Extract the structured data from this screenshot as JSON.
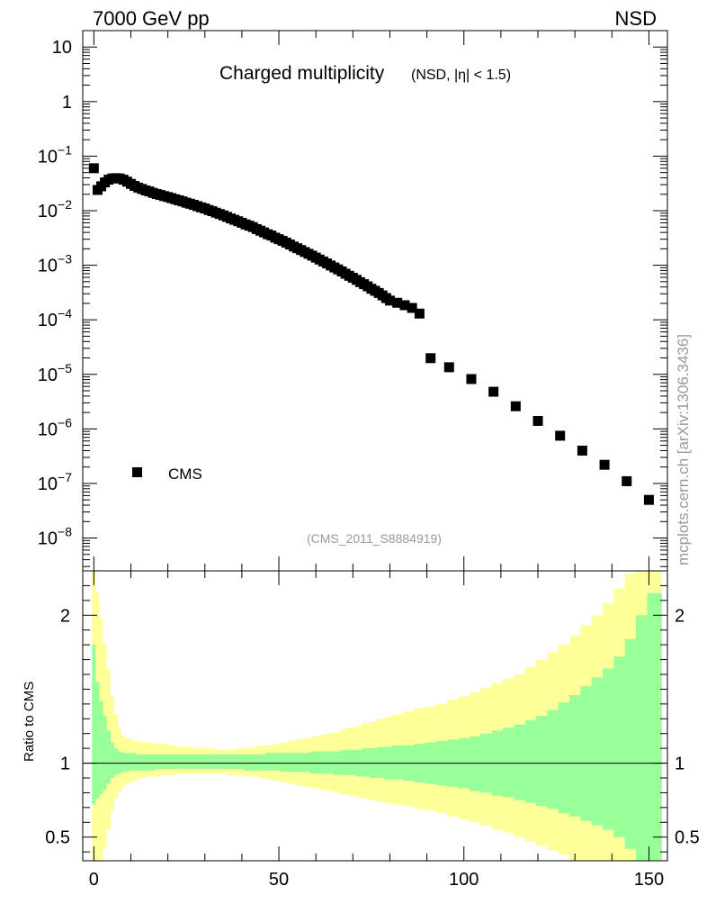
{
  "header": {
    "left": "7000 GeV pp",
    "right": "NSD"
  },
  "side_label": "mcplots.cern.ch [arXiv:1306.3436]",
  "analysis_tag": "(CMS_2011_S8884919)",
  "chart_data": [
    {
      "type": "scatter",
      "panel": "main",
      "title": "Charged multiplicity",
      "subtitle": "(NSD, |η| < 1.5)",
      "yscale": "log",
      "xlim": [
        -3,
        155
      ],
      "ylim": [
        2.5e-09,
        20
      ],
      "y_ticks": [
        {
          "value": 10,
          "mant": "10",
          "exp": ""
        },
        {
          "value": 1,
          "mant": "1",
          "exp": ""
        },
        {
          "value": 0.1,
          "mant": "10",
          "exp": "−1"
        },
        {
          "value": 0.01,
          "mant": "10",
          "exp": "−2"
        },
        {
          "value": 0.001,
          "mant": "10",
          "exp": "−3"
        },
        {
          "value": 0.0001,
          "mant": "10",
          "exp": "−4"
        },
        {
          "value": 1e-05,
          "mant": "10",
          "exp": "−5"
        },
        {
          "value": 1e-06,
          "mant": "10",
          "exp": "−6"
        },
        {
          "value": 1e-07,
          "mant": "10",
          "exp": "−7"
        },
        {
          "value": 1e-08,
          "mant": "10",
          "exp": "−8"
        }
      ],
      "legend": {
        "placement": "bottom-left",
        "entries": [
          "CMS"
        ]
      },
      "series": [
        {
          "name": "CMS",
          "marker": "square",
          "color": "#000000",
          "x": [
            0,
            1,
            2,
            3,
            4,
            5,
            6,
            7,
            8,
            9,
            10,
            11,
            12,
            13,
            14,
            15,
            16,
            17,
            18,
            19,
            20,
            21,
            22,
            23,
            24,
            25,
            26,
            27,
            28,
            29,
            30,
            31,
            32,
            33,
            34,
            35,
            36,
            37,
            38,
            39,
            40,
            41,
            42,
            43,
            44,
            45,
            46,
            47,
            48,
            49,
            50,
            51,
            52,
            53,
            54,
            55,
            56,
            57,
            58,
            59,
            60,
            61,
            62,
            63,
            64,
            65,
            66,
            67,
            68,
            69,
            70,
            71,
            72,
            73,
            74,
            75,
            76,
            77,
            78,
            79,
            80,
            82,
            84,
            86,
            88,
            91,
            96,
            102,
            108,
            114,
            120,
            126,
            132,
            138,
            144,
            150
          ],
          "y": [
            0.06,
            0.024,
            0.028,
            0.033,
            0.037,
            0.039,
            0.0395,
            0.039,
            0.037,
            0.034,
            0.031,
            0.0285,
            0.0265,
            0.025,
            0.0235,
            0.0225,
            0.0212,
            0.0202,
            0.0194,
            0.0185,
            0.0178,
            0.017,
            0.0162,
            0.0155,
            0.0148,
            0.014,
            0.0134,
            0.0128,
            0.0121,
            0.0115,
            0.011,
            0.0103,
            0.0098,
            0.0092,
            0.0087,
            0.0082,
            0.0077,
            0.0072,
            0.0068,
            0.0064,
            0.006,
            0.0056,
            0.0053,
            0.005,
            0.0046,
            0.0043,
            0.004,
            0.0037,
            0.0035,
            0.0032,
            0.003,
            0.0028,
            0.0026,
            0.0024,
            0.0022,
            0.00205,
            0.0019,
            0.00175,
            0.00162,
            0.0015,
            0.00138,
            0.00127,
            0.00117,
            0.00108,
            0.00099,
            0.00091,
            0.00084,
            0.00077,
            0.0007,
            0.00064,
            0.00059,
            0.00054,
            0.00049,
            0.00045,
            0.00041,
            0.00037,
            0.00034,
            0.00031,
            0.00028,
            0.00025,
            0.000225,
            0.000205,
            0.000185,
            0.000165,
            0.00013,
            1.98e-05,
            1.35e-05,
            8.2e-06,
            4.8e-06,
            2.6e-06,
            1.4e-06,
            7.5e-07,
            4e-07,
            2.2e-07,
            1.1e-07,
            5e-08
          ]
        }
      ]
    },
    {
      "type": "area",
      "panel": "ratio",
      "ylabel": "Ratio to CMS",
      "xlim": [
        -3,
        155
      ],
      "ylim": [
        0.34,
        2.3
      ],
      "x_ticks": [
        0,
        50,
        100,
        150
      ],
      "y_ticks": [
        {
          "value": 0.5,
          "label": "0.5"
        },
        {
          "value": 1,
          "label": "1"
        },
        {
          "value": 2,
          "label": "2"
        }
      ],
      "reference_line": 1,
      "bands": [
        {
          "band": "outer",
          "color": "#ffff99",
          "edges": [
            -0.5,
            0.5,
            1.5,
            2.5,
            3.5,
            4.5,
            5.5,
            6.5,
            7.5,
            8.5,
            9.5,
            10.5,
            11.5,
            12.5,
            14.5,
            16.5,
            18.5,
            20.5,
            22.5,
            24.5,
            26.5,
            28.5,
            30.5,
            32.5,
            34.5,
            36.5,
            38.5,
            40.5,
            42.5,
            44.5,
            46.5,
            48.5,
            50.5,
            52.5,
            54.5,
            56.5,
            58.5,
            60.5,
            62.5,
            64.5,
            66.5,
            68.5,
            70.5,
            72.5,
            74.5,
            76.5,
            78.5,
            80.5,
            83.5,
            86.5,
            89.5,
            92.5,
            95.5,
            98.5,
            101.5,
            104.5,
            107.5,
            110.5,
            113.5,
            116.5,
            119.5,
            122.5,
            125.5,
            128.5,
            131.5,
            134.5,
            137.5,
            140.5,
            143.5,
            146.5,
            149.5,
            153.5
          ],
          "upper": [
            2.35,
            2.15,
            1.98,
            1.8,
            1.63,
            1.45,
            1.33,
            1.24,
            1.19,
            1.17,
            1.16,
            1.15,
            1.15,
            1.14,
            1.14,
            1.13,
            1.13,
            1.12,
            1.11,
            1.11,
            1.1,
            1.1,
            1.1,
            1.09,
            1.09,
            1.09,
            1.1,
            1.1,
            1.11,
            1.12,
            1.12,
            1.13,
            1.14,
            1.15,
            1.16,
            1.17,
            1.18,
            1.19,
            1.2,
            1.21,
            1.23,
            1.24,
            1.25,
            1.27,
            1.28,
            1.3,
            1.31,
            1.33,
            1.35,
            1.37,
            1.38,
            1.4,
            1.43,
            1.45,
            1.48,
            1.51,
            1.54,
            1.57,
            1.6,
            1.65,
            1.7,
            1.75,
            1.8,
            1.86,
            1.93,
            2.0,
            2.08,
            2.18,
            2.28,
            2.4,
            2.5
          ],
          "lower": [
            0.2,
            0.28,
            0.35,
            0.42,
            0.55,
            0.68,
            0.76,
            0.81,
            0.84,
            0.86,
            0.87,
            0.88,
            0.89,
            0.9,
            0.91,
            0.91,
            0.92,
            0.92,
            0.93,
            0.93,
            0.93,
            0.93,
            0.93,
            0.93,
            0.93,
            0.92,
            0.92,
            0.91,
            0.91,
            0.9,
            0.89,
            0.88,
            0.87,
            0.86,
            0.85,
            0.84,
            0.83,
            0.82,
            0.81,
            0.8,
            0.79,
            0.78,
            0.77,
            0.76,
            0.75,
            0.74,
            0.73,
            0.72,
            0.71,
            0.69,
            0.68,
            0.66,
            0.64,
            0.62,
            0.6,
            0.58,
            0.55,
            0.53,
            0.5,
            0.47,
            0.44,
            0.41,
            0.38,
            0.34,
            0.3,
            0.26,
            0.22,
            0.18,
            0.14,
            0.1,
            0.05
          ]
        },
        {
          "band": "inner",
          "color": "#99ff99",
          "edges": [
            -0.5,
            0.5,
            1.5,
            2.5,
            3.5,
            4.5,
            5.5,
            6.5,
            7.5,
            8.5,
            9.5,
            10.5,
            11.5,
            12.5,
            14.5,
            16.5,
            18.5,
            20.5,
            22.5,
            24.5,
            26.5,
            28.5,
            30.5,
            32.5,
            34.5,
            36.5,
            38.5,
            40.5,
            42.5,
            44.5,
            46.5,
            48.5,
            50.5,
            52.5,
            54.5,
            56.5,
            58.5,
            60.5,
            62.5,
            64.5,
            66.5,
            68.5,
            70.5,
            72.5,
            74.5,
            76.5,
            78.5,
            80.5,
            83.5,
            86.5,
            89.5,
            92.5,
            95.5,
            98.5,
            101.5,
            104.5,
            107.5,
            110.5,
            113.5,
            116.5,
            119.5,
            122.5,
            125.5,
            128.5,
            131.5,
            134.5,
            137.5,
            140.5,
            143.5,
            146.5,
            149.5,
            153.5
          ],
          "upper": [
            1.8,
            1.55,
            1.42,
            1.32,
            1.22,
            1.14,
            1.1,
            1.08,
            1.07,
            1.07,
            1.07,
            1.07,
            1.06,
            1.06,
            1.06,
            1.06,
            1.06,
            1.06,
            1.06,
            1.06,
            1.06,
            1.06,
            1.06,
            1.06,
            1.06,
            1.06,
            1.06,
            1.06,
            1.06,
            1.06,
            1.07,
            1.07,
            1.07,
            1.07,
            1.07,
            1.07,
            1.08,
            1.08,
            1.08,
            1.08,
            1.09,
            1.09,
            1.09,
            1.1,
            1.1,
            1.11,
            1.11,
            1.12,
            1.12,
            1.13,
            1.14,
            1.15,
            1.16,
            1.17,
            1.18,
            1.2,
            1.22,
            1.24,
            1.26,
            1.29,
            1.32,
            1.36,
            1.41,
            1.46,
            1.52,
            1.58,
            1.64,
            1.72,
            1.84,
            2.0,
            2.15
          ],
          "lower": [
            0.72,
            0.76,
            0.79,
            0.82,
            0.86,
            0.9,
            0.92,
            0.93,
            0.94,
            0.94,
            0.95,
            0.95,
            0.95,
            0.95,
            0.95,
            0.96,
            0.96,
            0.96,
            0.96,
            0.96,
            0.96,
            0.96,
            0.96,
            0.96,
            0.96,
            0.96,
            0.96,
            0.95,
            0.95,
            0.95,
            0.95,
            0.95,
            0.94,
            0.94,
            0.94,
            0.94,
            0.93,
            0.93,
            0.93,
            0.92,
            0.92,
            0.92,
            0.91,
            0.91,
            0.9,
            0.9,
            0.89,
            0.89,
            0.88,
            0.87,
            0.86,
            0.85,
            0.84,
            0.83,
            0.81,
            0.8,
            0.78,
            0.77,
            0.75,
            0.73,
            0.71,
            0.69,
            0.66,
            0.64,
            0.61,
            0.58,
            0.55,
            0.5,
            0.42,
            0.33,
            0.25
          ]
        }
      ]
    }
  ]
}
